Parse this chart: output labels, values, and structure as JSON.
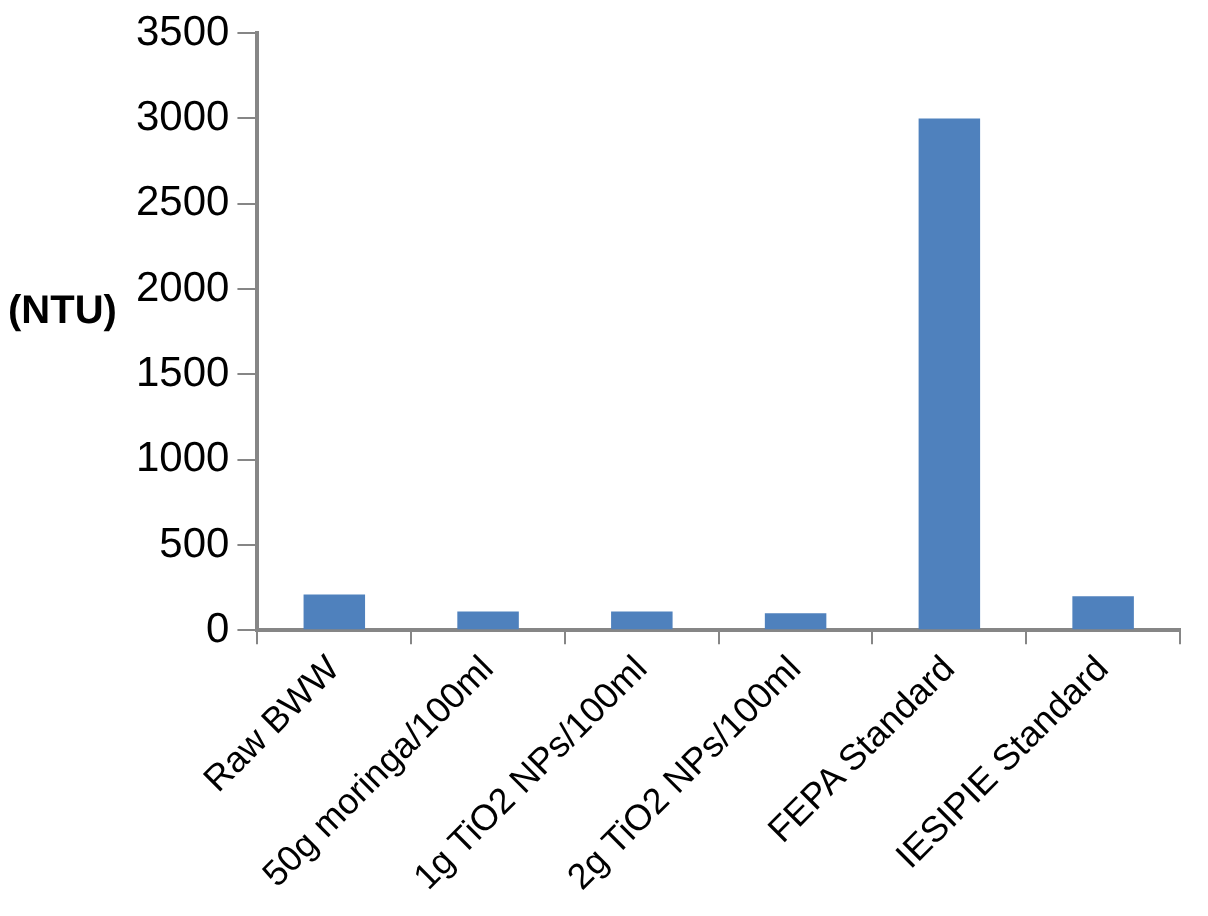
{
  "chart_data": {
    "type": "bar",
    "ylabel": "(NTU)",
    "categories": [
      "Raw BWW",
      "50g moringa/100ml",
      "1g TiO2 NPs/100ml",
      "2g TiO2 NPs/100ml",
      "FEPA Standard",
      "IESIPIE Standard"
    ],
    "values": [
      210,
      110,
      110,
      100,
      3000,
      200
    ],
    "color": "#4f81bd",
    "ylim": [
      0,
      3500
    ],
    "yticks": [
      0,
      500,
      1000,
      1500,
      2000,
      2500,
      3000,
      3500
    ],
    "grid": false,
    "legend": false
  }
}
